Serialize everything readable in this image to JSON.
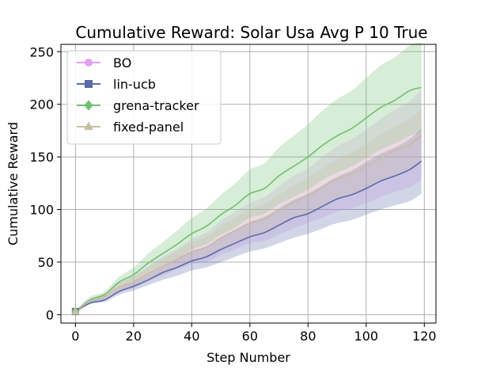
{
  "chart_data": {
    "type": "line",
    "title": "Cumulative Reward: Solar Usa Avg P 10 True",
    "xlabel": "Step Number",
    "ylabel": "Cumulative Reward",
    "xlim": [
      -5,
      124
    ],
    "ylim": [
      -8,
      257
    ],
    "xticks": [
      0,
      20,
      40,
      60,
      80,
      100,
      120
    ],
    "yticks": [
      0,
      50,
      100,
      150,
      200,
      250
    ],
    "grid": true,
    "legend_position": "top-left",
    "series": [
      {
        "name": "BO",
        "color": "#e3a0f0",
        "marker": "circle",
        "x": [
          0,
          5,
          10,
          15,
          20,
          25,
          30,
          35,
          40,
          45,
          50,
          55,
          60,
          65,
          70,
          75,
          80,
          85,
          90,
          95,
          100,
          105,
          110,
          115,
          119
        ],
        "y": [
          3,
          13,
          17,
          26,
          31,
          39,
          46,
          53,
          60,
          64,
          73,
          80,
          87,
          91,
          99,
          107,
          113,
          121,
          129,
          134,
          141,
          149,
          156,
          162,
          171
        ],
        "band_low": [
          2,
          11,
          14,
          22,
          25,
          32,
          37,
          43,
          48,
          50,
          57,
          62,
          68,
          70,
          76,
          82,
          87,
          92,
          98,
          101,
          106,
          112,
          117,
          121,
          128
        ],
        "band_high": [
          4,
          15,
          20,
          30,
          37,
          46,
          55,
          63,
          72,
          78,
          89,
          98,
          106,
          112,
          122,
          132,
          139,
          150,
          160,
          167,
          176,
          186,
          195,
          203,
          214
        ]
      },
      {
        "name": "lin-ucb",
        "color": "#5b6ba8",
        "marker": "square",
        "x": [
          0,
          5,
          10,
          15,
          20,
          25,
          30,
          35,
          40,
          45,
          50,
          55,
          60,
          65,
          70,
          75,
          80,
          85,
          90,
          95,
          100,
          105,
          110,
          115,
          119
        ],
        "y": [
          3,
          11,
          14,
          22,
          27,
          33,
          40,
          45,
          51,
          55,
          62,
          68,
          74,
          78,
          85,
          92,
          96,
          103,
          110,
          114,
          120,
          127,
          132,
          138,
          146
        ],
        "band_low": [
          2,
          10,
          12,
          19,
          23,
          28,
          33,
          37,
          42,
          45,
          50,
          55,
          60,
          63,
          68,
          73,
          77,
          82,
          87,
          90,
          95,
          100,
          104,
          108,
          115
        ],
        "band_high": [
          4,
          13,
          16,
          25,
          31,
          38,
          46,
          53,
          60,
          65,
          73,
          81,
          88,
          93,
          101,
          109,
          115,
          123,
          131,
          137,
          145,
          153,
          159,
          167,
          177
        ]
      },
      {
        "name": "grena-tracker",
        "color": "#70c070",
        "marker": "diamond",
        "x": [
          0,
          5,
          10,
          15,
          20,
          25,
          30,
          35,
          40,
          45,
          50,
          55,
          60,
          65,
          70,
          75,
          80,
          85,
          90,
          95,
          100,
          105,
          110,
          115,
          119
        ],
        "y": [
          3,
          14,
          19,
          31,
          38,
          49,
          58,
          67,
          77,
          84,
          95,
          104,
          115,
          120,
          132,
          141,
          150,
          161,
          170,
          177,
          187,
          197,
          204,
          213,
          216
        ],
        "band_low": [
          2,
          12,
          16,
          26,
          31,
          40,
          47,
          54,
          62,
          67,
          76,
          83,
          92,
          96,
          105,
          112,
          119,
          128,
          135,
          141,
          149,
          157,
          163,
          170,
          173
        ],
        "band_high": [
          4,
          17,
          22,
          36,
          45,
          58,
          69,
          80,
          92,
          101,
          114,
          125,
          138,
          144,
          159,
          170,
          181,
          194,
          205,
          213,
          225,
          237,
          245,
          256,
          259
        ]
      },
      {
        "name": "fixed-panel",
        "color": "#c8bea2",
        "marker": "triangle",
        "x": [
          0,
          5,
          10,
          15,
          20,
          25,
          30,
          35,
          40,
          45,
          50,
          55,
          60,
          65,
          70,
          75,
          80,
          85,
          90,
          95,
          100,
          105,
          110,
          115,
          119
        ],
        "y": [
          3,
          13,
          17,
          26,
          31,
          39,
          46,
          53,
          60,
          64,
          73,
          80,
          87,
          91,
          99,
          107,
          113,
          121,
          129,
          134,
          141,
          149,
          156,
          162,
          170
        ],
        "band_low": [
          2,
          11,
          14,
          22,
          26,
          33,
          39,
          45,
          51,
          54,
          62,
          68,
          74,
          77,
          84,
          91,
          96,
          103,
          110,
          114,
          120,
          127,
          133,
          138,
          145
        ],
        "band_high": [
          4,
          15,
          20,
          30,
          36,
          45,
          53,
          61,
          69,
          74,
          84,
          92,
          100,
          105,
          114,
          123,
          130,
          139,
          148,
          154,
          162,
          171,
          179,
          186,
          195
        ]
      }
    ]
  }
}
